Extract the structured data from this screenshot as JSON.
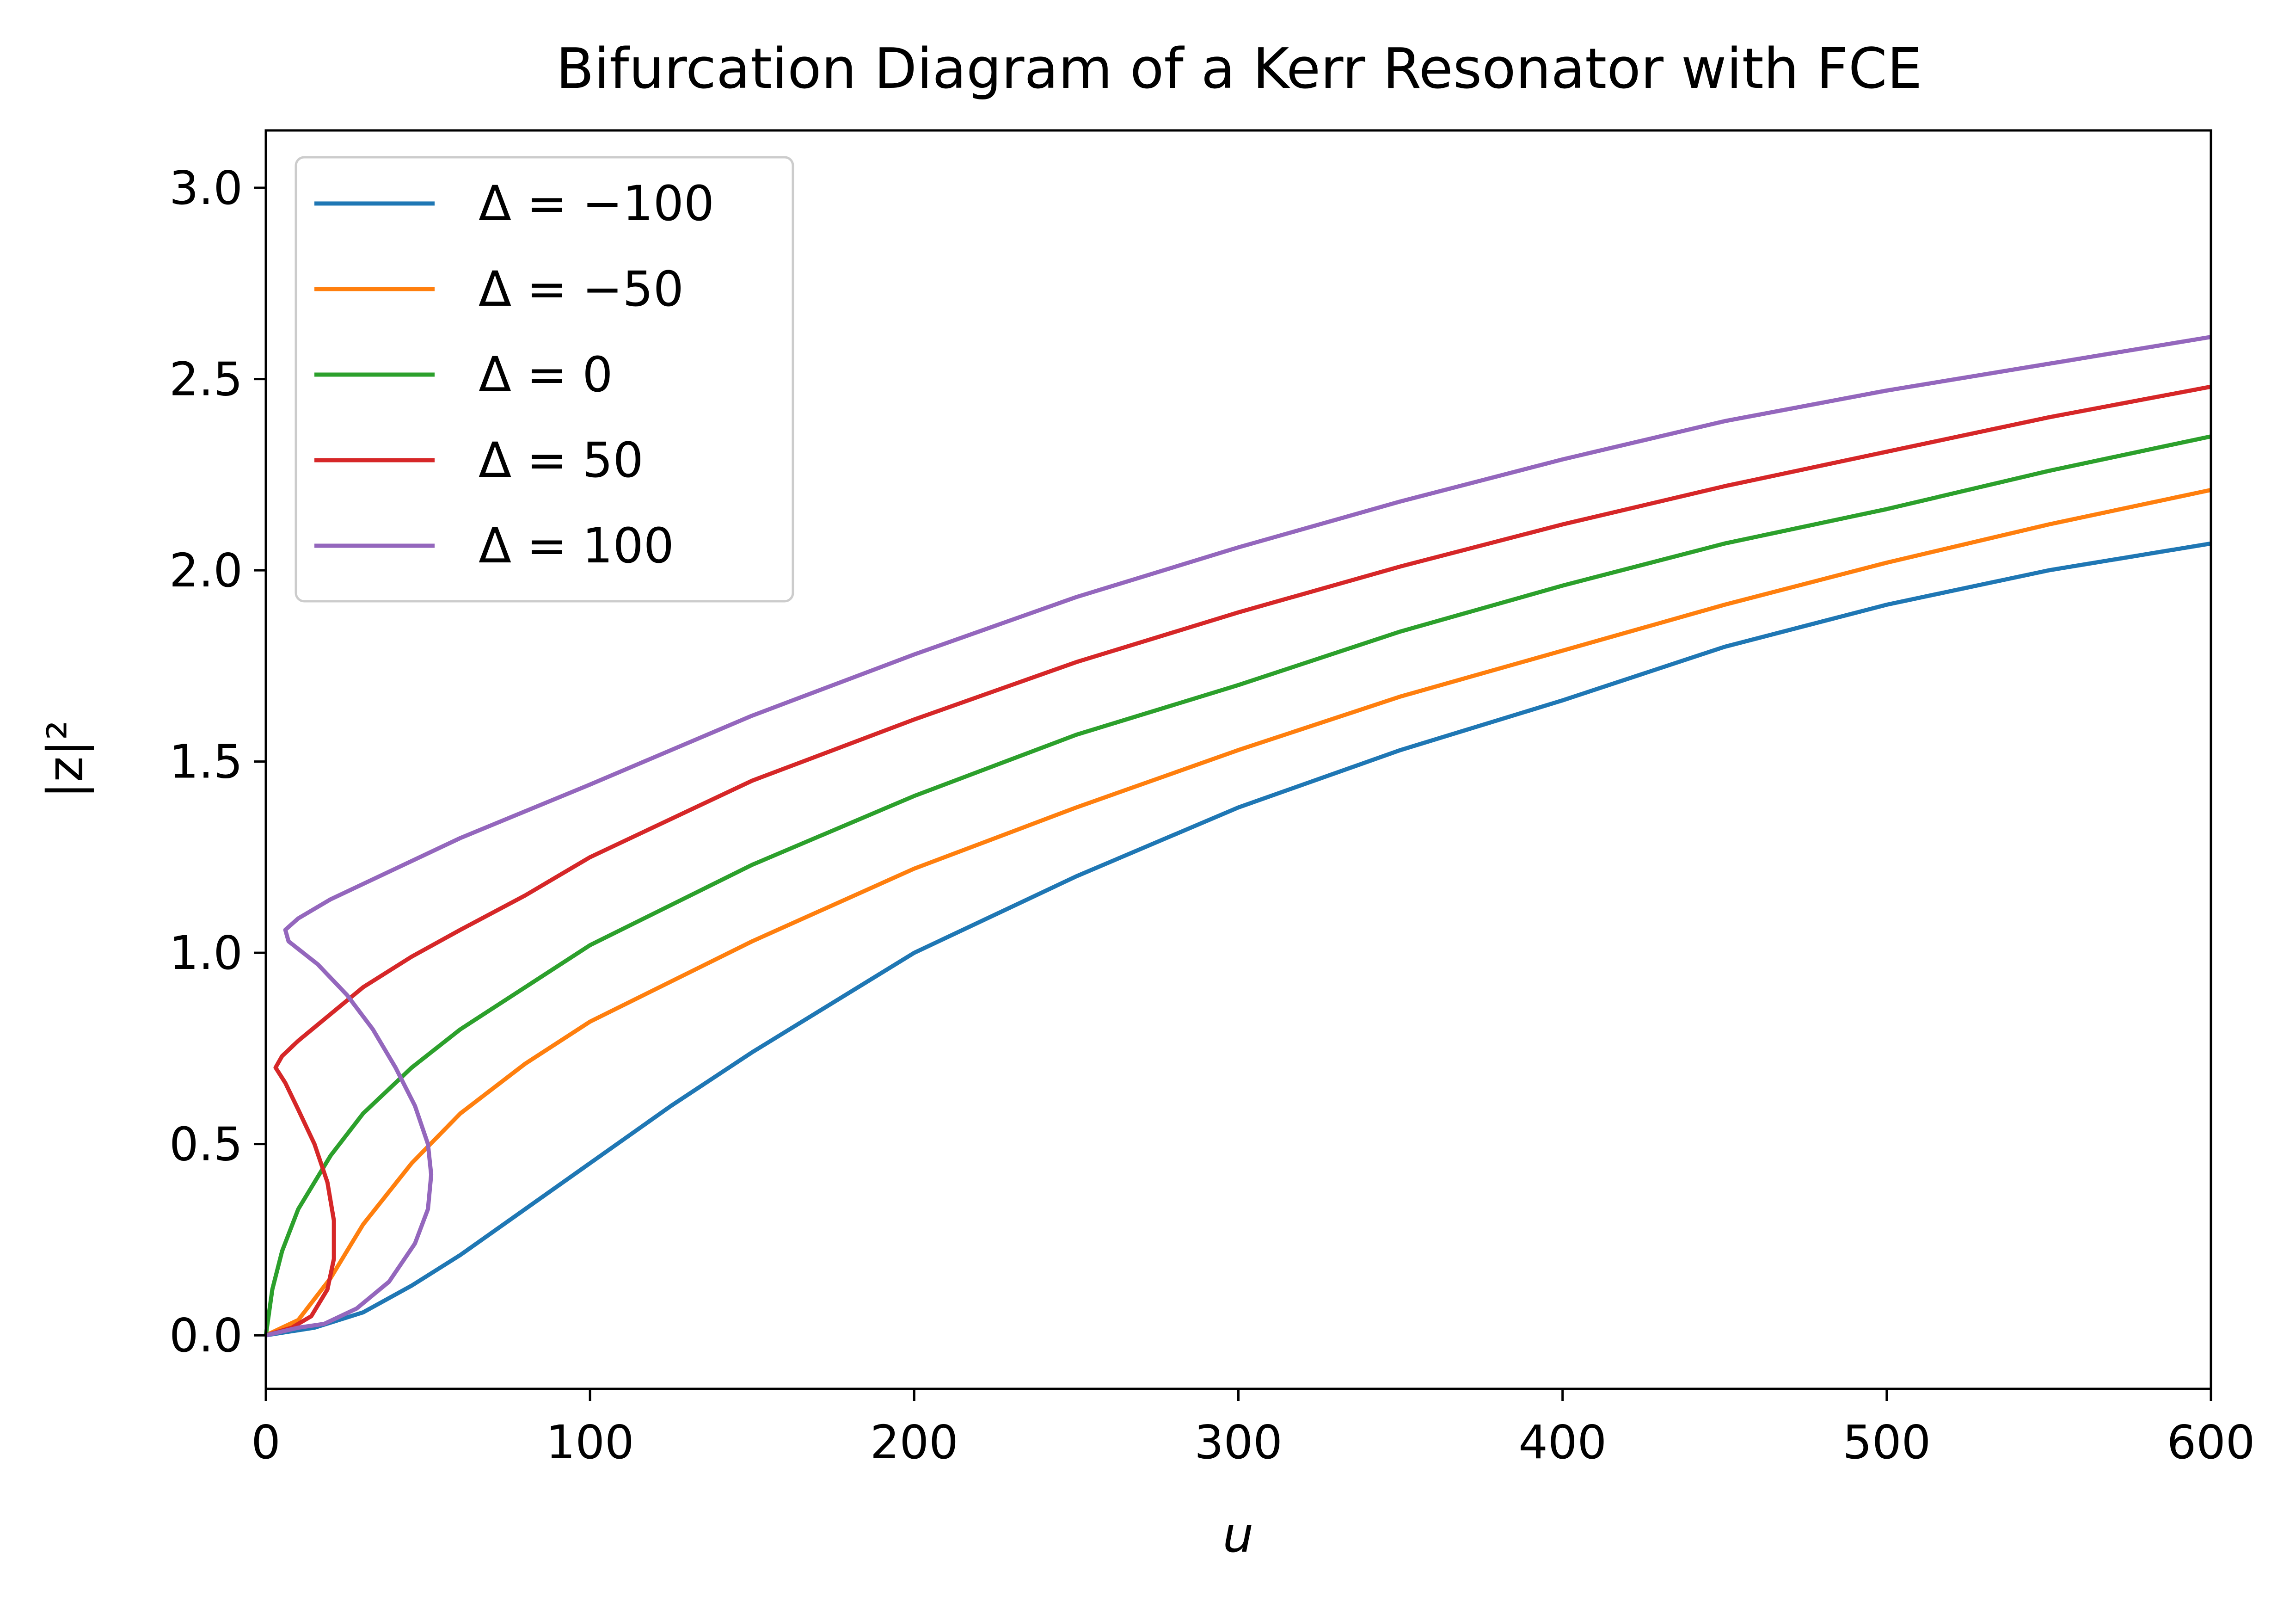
{
  "chart_data": {
    "type": "line",
    "title": "Bifurcation Diagram of a Kerr Resonator with FCE",
    "xlabel": "u",
    "ylabel": "|z|²",
    "xlim": [
      0,
      600
    ],
    "ylim": [
      -0.14,
      3.15
    ],
    "xticks": [
      {
        "value": 0,
        "label": "0"
      },
      {
        "value": 100,
        "label": "100"
      },
      {
        "value": 200,
        "label": "200"
      },
      {
        "value": 300,
        "label": "300"
      },
      {
        "value": 400,
        "label": "400"
      },
      {
        "value": 500,
        "label": "500"
      },
      {
        "value": 600,
        "label": "600"
      }
    ],
    "yticks": [
      {
        "value": 0.0,
        "label": "0.0"
      },
      {
        "value": 0.5,
        "label": "0.5"
      },
      {
        "value": 1.0,
        "label": "1.0"
      },
      {
        "value": 1.5,
        "label": "1.5"
      },
      {
        "value": 2.0,
        "label": "2.0"
      },
      {
        "value": 2.5,
        "label": "2.5"
      },
      {
        "value": 3.0,
        "label": "3.0"
      }
    ],
    "grid": false,
    "legend_position": "top-left",
    "series": [
      {
        "name": "Δ = −100",
        "color": "#1f77b4",
        "points": [
          [
            0,
            0
          ],
          [
            15,
            0.02
          ],
          [
            30,
            0.06
          ],
          [
            45,
            0.13
          ],
          [
            60,
            0.21
          ],
          [
            80,
            0.33
          ],
          [
            100,
            0.45
          ],
          [
            125,
            0.6
          ],
          [
            150,
            0.74
          ],
          [
            200,
            1.0
          ],
          [
            250,
            1.2
          ],
          [
            300,
            1.38
          ],
          [
            350,
            1.53
          ],
          [
            400,
            1.66
          ],
          [
            450,
            1.8
          ],
          [
            500,
            1.91
          ],
          [
            550,
            2.0
          ],
          [
            600,
            2.07
          ]
        ]
      },
      {
        "name": "Δ = −50",
        "color": "#ff7f0e",
        "points": [
          [
            0,
            0
          ],
          [
            10,
            0.04
          ],
          [
            20,
            0.15
          ],
          [
            30,
            0.29
          ],
          [
            45,
            0.45
          ],
          [
            60,
            0.58
          ],
          [
            80,
            0.71
          ],
          [
            100,
            0.82
          ],
          [
            150,
            1.03
          ],
          [
            200,
            1.22
          ],
          [
            250,
            1.38
          ],
          [
            300,
            1.53
          ],
          [
            350,
            1.67
          ],
          [
            400,
            1.79
          ],
          [
            450,
            1.91
          ],
          [
            500,
            2.02
          ],
          [
            550,
            2.12
          ],
          [
            600,
            2.21
          ]
        ]
      },
      {
        "name": "Δ = 0",
        "color": "#2ca02c",
        "points": [
          [
            0,
            0
          ],
          [
            2,
            0.12
          ],
          [
            5,
            0.22
          ],
          [
            10,
            0.33
          ],
          [
            20,
            0.47
          ],
          [
            30,
            0.58
          ],
          [
            45,
            0.7
          ],
          [
            60,
            0.8
          ],
          [
            80,
            0.91
          ],
          [
            100,
            1.02
          ],
          [
            150,
            1.23
          ],
          [
            200,
            1.41
          ],
          [
            250,
            1.57
          ],
          [
            300,
            1.7
          ],
          [
            350,
            1.84
          ],
          [
            400,
            1.96
          ],
          [
            450,
            2.07
          ],
          [
            500,
            2.16
          ],
          [
            550,
            2.26
          ],
          [
            600,
            2.35
          ]
        ]
      },
      {
        "name": "Δ = 50",
        "color": "#d62728",
        "points": [
          [
            0,
            0
          ],
          [
            8,
            0.02
          ],
          [
            14,
            0.05
          ],
          [
            19,
            0.12
          ],
          [
            21,
            0.2
          ],
          [
            21,
            0.3
          ],
          [
            19,
            0.4
          ],
          [
            15,
            0.5
          ],
          [
            10,
            0.59
          ],
          [
            6,
            0.66
          ],
          [
            3,
            0.7
          ],
          [
            5,
            0.73
          ],
          [
            10,
            0.77
          ],
          [
            20,
            0.84
          ],
          [
            30,
            0.91
          ],
          [
            45,
            0.99
          ],
          [
            60,
            1.06
          ],
          [
            80,
            1.15
          ],
          [
            100,
            1.25
          ],
          [
            150,
            1.45
          ],
          [
            200,
            1.61
          ],
          [
            250,
            1.76
          ],
          [
            300,
            1.89
          ],
          [
            350,
            2.01
          ],
          [
            400,
            2.12
          ],
          [
            450,
            2.22
          ],
          [
            500,
            2.31
          ],
          [
            550,
            2.4
          ],
          [
            600,
            2.48
          ]
        ]
      },
      {
        "name": "Δ = 100",
        "color": "#9467bd",
        "points": [
          [
            0,
            0
          ],
          [
            10,
            0.02
          ],
          [
            18,
            0.03
          ],
          [
            28,
            0.07
          ],
          [
            38,
            0.14
          ],
          [
            46,
            0.24
          ],
          [
            50,
            0.33
          ],
          [
            51,
            0.42
          ],
          [
            50,
            0.5
          ],
          [
            46,
            0.6
          ],
          [
            40,
            0.7
          ],
          [
            33,
            0.8
          ],
          [
            25,
            0.89
          ],
          [
            16,
            0.97
          ],
          [
            7,
            1.03
          ],
          [
            6,
            1.06
          ],
          [
            10,
            1.09
          ],
          [
            20,
            1.14
          ],
          [
            40,
            1.22
          ],
          [
            60,
            1.3
          ],
          [
            80,
            1.37
          ],
          [
            100,
            1.44
          ],
          [
            150,
            1.62
          ],
          [
            200,
            1.78
          ],
          [
            250,
            1.93
          ],
          [
            300,
            2.06
          ],
          [
            350,
            2.18
          ],
          [
            400,
            2.29
          ],
          [
            450,
            2.39
          ],
          [
            500,
            2.47
          ],
          [
            550,
            2.54
          ],
          [
            600,
            2.61
          ]
        ]
      }
    ]
  }
}
